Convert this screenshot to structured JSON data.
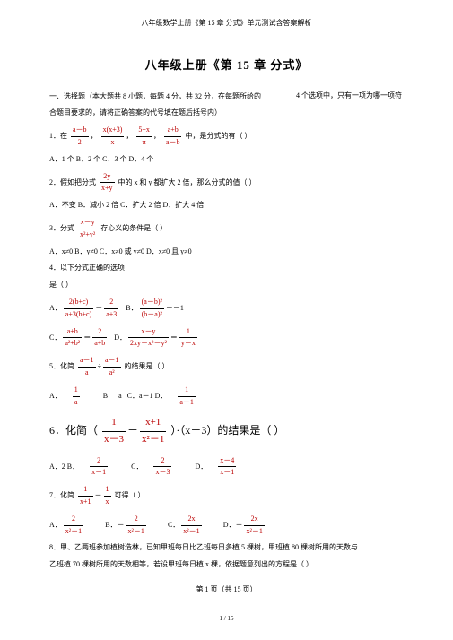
{
  "docHeader": "八年级数学上册《第 15 章 分式》单元测试含答案解析",
  "title": "八年级上册《第 15 章 分式》",
  "rightNote": "4 个选项中，只有一项为哪一项符",
  "sec1": "一、选择题（本大题共   8 小题，每题    4 分，共 32 分，在每题所给的",
  "sec1b": "合题目要求的，请将正确答案的代号填在题后括号内）",
  "q1_pre": "1．在",
  "q1_mid": "中，是分式的有（   ）",
  "q1_opts": "A．1 个 B．2 个 C．3 个 D．4 个",
  "q2_pre": "2．假如把分式",
  "q2_post": "中的 x 和 y 都扩大 2 倍，那么分式的值（   ）",
  "q2_opts": "A．不变 B．减小 2 倍 C．扩大 2 倍 D．扩大 4 倍",
  "q3_pre": "3．分式",
  "q3_post": "存心义的条件是（   ）",
  "q3_opts": "A．x≠0 B．y≠0 C．x≠0 或 y≠0  D．x≠0 且 y≠0",
  "q4": "4．以下分式正确的选项",
  "q4b": "是（   ）",
  "q5_pre": "5．化简",
  "q5_post": "的结果是（   ）",
  "q5a": "A．",
  "q5b": "B",
  "q5c": "C．a－1 D．",
  "q6_pre": "6．化简（",
  "q6_mid": "）·（x－3）的结果是（   ）",
  "q6_opts_a": "A．2   B．",
  "q6_opts_c": "C．",
  "q6_opts_d": "D．",
  "q7_pre": "7．化简",
  "q7_post": "可得（   ）",
  "q8": "8．甲、乙两班参加植树造林，已知甲班每日比乙班每日多植     5 棵树，甲班植  80 棵树所用的天数与",
  "q8b": "乙班植  70 棵树所用的天数相等，若设甲班每日植    x 棵，依据题意列出的方程是（     ）",
  "footer": "第 1 页（共 15 页）",
  "footer2": "1 / 15",
  "f1n": "a－b",
  "f1d": "2",
  "f2n": "x(x+3)",
  "f2d": "x",
  "f3n": "5+x",
  "f3d": "π",
  "f4n": "a+b",
  "f4d": "a－b",
  "f5n": "2y",
  "f5d": "x+y",
  "f6n": "x－y",
  "f6d": "x²+y²",
  "fA1n": "2(b+c)",
  "fA1d": "a+3(b+c)",
  "fA2n": "2",
  "fA2d": "a+3",
  "fB1n": "(a－b)²",
  "fB1d": "(b－a)²",
  "fC1n": "a+b",
  "fC1d": "a²+b²",
  "fC2n": "2",
  "fC2d": "a+b",
  "fD1n": "x－y",
  "fD1d": "2xy－x²－y²",
  "fD2n": "1",
  "fD2d": "y－x",
  "f7n": "a－1",
  "f7d": "a",
  "f8n": "a－1",
  "f8d": "a²",
  "f9n": "1",
  "f9d": "a",
  "f10n": "1",
  "f10d": "a－1",
  "f61n": "1",
  "f61d": "x－3",
  "f62n": "x+1",
  "f62d": "x²－1",
  "f63n": "2",
  "f63d": "x－1",
  "f64n": "2",
  "f64d": "x－3",
  "f65n": "x－4",
  "f65d": "x－1",
  "f71n": "1",
  "f71d": "x+1",
  "f72n": "1",
  "f72d": "x",
  "f7An": "2",
  "f7Ad": "x²－1",
  "f7Bn": "2",
  "f7Bd": "x²－1",
  "f7Cn": "2x",
  "f7Cd": "x²－1",
  "f7Dn": "2x",
  "f7Dd": "x²－1"
}
